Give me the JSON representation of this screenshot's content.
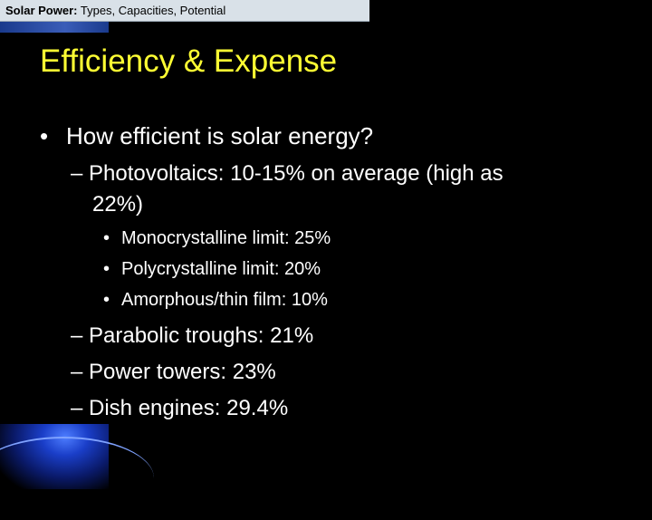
{
  "header": {
    "brand_bold": "Solar Power:",
    "brand_rest": "Types, Capacities, Potential"
  },
  "slide": {
    "title": "Efficiency & Expense",
    "bullets": {
      "q": "How efficient is solar energy?",
      "pv_line1": "– Photovoltaics: 10-15% on average (high as",
      "pv_line2": "22%)",
      "mono": "Monocrystalline limit: 25%",
      "poly": "Polycrystalline limit: 20%",
      "amor": "Amorphous/thin film: 10%",
      "parabolic": "– Parabolic troughs: 21%",
      "towers": "– Power towers: 23%",
      "dish": "– Dish engines: 29.4%"
    },
    "bullet_symbol": "•"
  },
  "colors": {
    "background": "#000000",
    "title": "#ffff33",
    "text": "#ffffff",
    "header_bg": "#d9e1e8"
  }
}
